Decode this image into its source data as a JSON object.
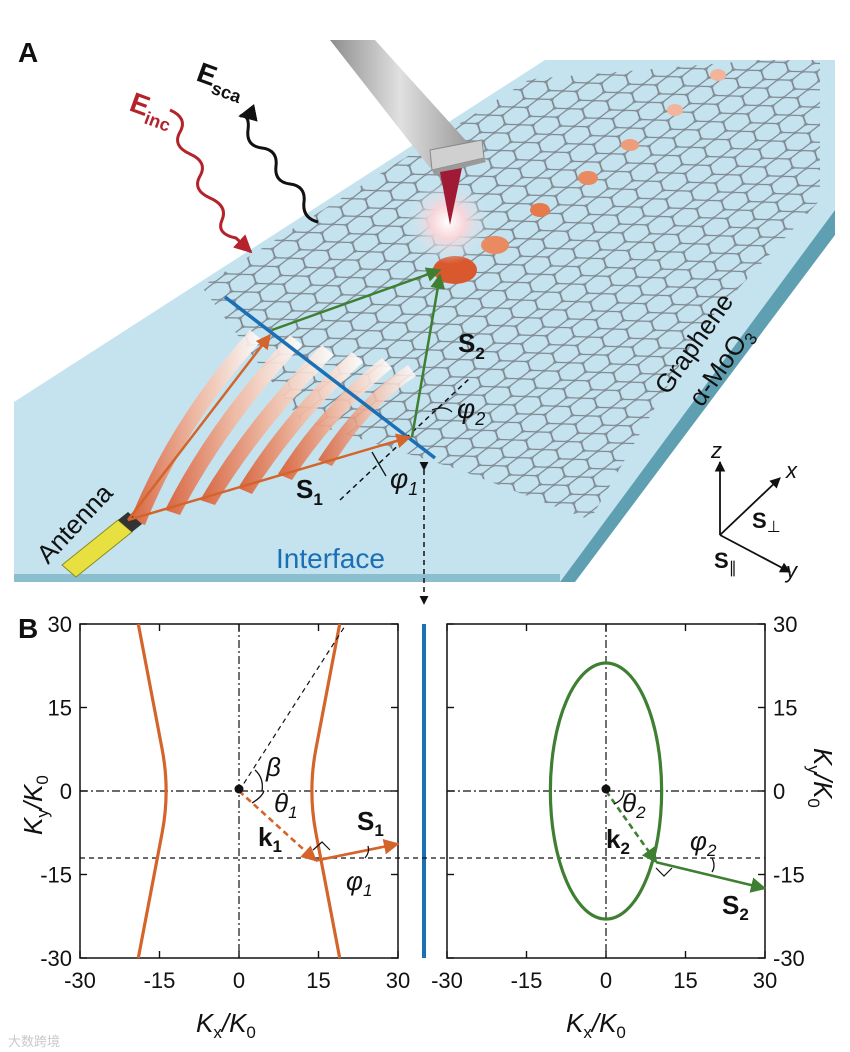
{
  "panel_a": {
    "label": "A",
    "e_inc": "E",
    "e_inc_sub": "inc",
    "e_sca": "E",
    "e_sca_sub": "sca",
    "s2": "S",
    "s2_sub": "2",
    "s1": "S",
    "s1_sub": "1",
    "phi2": "φ",
    "phi2_sub": "2",
    "phi1": "φ",
    "phi1_sub": "1",
    "graphene": "Graphene",
    "moo3": "α-MoO",
    "moo3_sub": "3",
    "antenna": "Antenna",
    "interface": "Interface",
    "axis_z": "z",
    "axis_x": "x",
    "axis_y": "y",
    "s_perp": "S",
    "s_perp_sub": "⊥",
    "s_par": "S",
    "s_par_sub": "∥",
    "colors": {
      "substrate": "#bfe1ee",
      "hbn": "#cde8f3",
      "orange": "#d4642a",
      "green": "#3f7f32",
      "blue": "#1b6fb5",
      "red": "#b4232b"
    }
  },
  "panel_b": {
    "label": "B",
    "left": {
      "beta": "β",
      "theta": "θ",
      "theta_sub": "1",
      "k": "k",
      "k_sub": "1",
      "s": "S",
      "s_sub": "1",
      "phi": "φ",
      "phi_sub": "1"
    },
    "right": {
      "theta": "θ",
      "theta_sub": "2",
      "k": "k",
      "k_sub": "2",
      "s": "S",
      "s_sub": "2",
      "phi": "φ",
      "phi_sub": "2"
    },
    "ylabel_left": "K",
    "ylabel_left_sub": "y",
    "ylabel_left_tail": "/K",
    "ylabel_left_tail_sub": "0",
    "xlabel": "K",
    "xlabel_sub": "x",
    "xlabel_tail": "/K",
    "xlabel_tail_sub": "0",
    "x_ticks": [
      "-30",
      "-15",
      "0",
      "15",
      "30"
    ],
    "y_ticks": [
      "30",
      "15",
      "0",
      "-15",
      "-30"
    ]
  },
  "watermark": "大数跨境",
  "chart_data": [
    {
      "type": "line",
      "series": [
        {
          "values": [
            [
              -19,
              30
            ],
            [
              -16,
              15
            ],
            [
              -13,
              0
            ],
            [
              -16,
              -15
            ],
            [
              -19,
              -30
            ]
          ]
        },
        {
          "values": [
            [
              19,
              30
            ],
            [
              16,
              15
            ],
            [
              13,
              0
            ],
            [
              16,
              -15
            ],
            [
              19,
              -30
            ]
          ]
        }
      ],
      "vectors": [
        {
          "label": "k1",
          "from": [
            0,
            0
          ],
          "to": [
            14.5,
            -12.5
          ]
        },
        {
          "label": "S1",
          "from": [
            14.5,
            -12.5
          ],
          "to": [
            30,
            -9.5
          ]
        }
      ],
      "xlim": [
        -30,
        30
      ],
      "ylim": [
        -30,
        30
      ]
    },
    {
      "type": "line",
      "series": [
        {
          "shape": "ellipse",
          "center": [
            0,
            0
          ],
          "semi_x": 10.5,
          "semi_y": 23
        }
      ],
      "vectors": [
        {
          "label": "k2",
          "from": [
            0,
            0
          ],
          "to": [
            9.5,
            -12.8
          ]
        },
        {
          "label": "S2",
          "from": [
            9.5,
            -12.8
          ],
          "to": [
            30,
            -17.5
          ]
        }
      ],
      "xlim": [
        -30,
        30
      ],
      "ylim": [
        -30,
        30
      ]
    }
  ]
}
